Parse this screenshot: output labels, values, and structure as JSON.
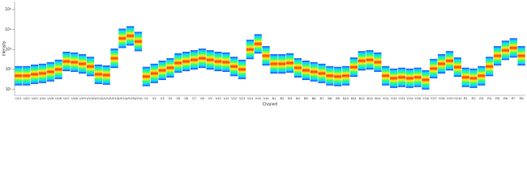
{
  "chart_data": {
    "type": "density-strip",
    "y_label": "Intensity",
    "x_label": "Channel",
    "log_scale": true,
    "colormap": [
      "#1f3cff",
      "#00d8ff",
      "#20ff70",
      "#ffee00",
      "#ff2a00"
    ],
    "categories": [
      "UV1",
      "UV2",
      "UV3",
      "UV4",
      "UV5",
      "UV6",
      "UV7",
      "UV8",
      "UV9",
      "UV10",
      "UV11",
      "UV12",
      "UV13",
      "UV14",
      "UV15",
      "UV16",
      "V1",
      "V2",
      "V3",
      "V4",
      "V5",
      "V6",
      "V7",
      "V8",
      "V9",
      "V10",
      "V11",
      "V12",
      "V13",
      "V14",
      "V15",
      "V16",
      "B1",
      "B2",
      "B3",
      "B4",
      "B5",
      "B6",
      "B7",
      "B8",
      "B9",
      "B10",
      "B11",
      "B12",
      "B13",
      "B14",
      "YG1",
      "YG2",
      "YG3",
      "YG4",
      "YG5",
      "YG6",
      "YG7",
      "YG8",
      "YG9",
      "YG10",
      "R1",
      "R2",
      "R3",
      "R4",
      "R5",
      "R6",
      "R7",
      "R8"
    ],
    "values": [
      48,
      48,
      57,
      63,
      76,
      100,
      250,
      230,
      190,
      140,
      57,
      52,
      360,
      3600,
      4800,
      2500,
      44,
      63,
      90,
      120,
      210,
      250,
      300,
      360,
      300,
      250,
      230,
      140,
      100,
      1000,
      1900,
      480,
      190,
      190,
      210,
      120,
      90,
      76,
      63,
      48,
      44,
      48,
      130,
      270,
      300,
      230,
      48,
      36,
      40,
      36,
      40,
      30,
      110,
      190,
      270,
      130,
      40,
      36,
      48,
      140,
      480,
      900,
      1200,
      480
    ],
    "ylim": [
      5,
      250000
    ],
    "yticks": [
      {
        "value": 10,
        "label": "10¹"
      },
      {
        "value": 100,
        "label": "10²"
      },
      {
        "value": 1000,
        "label": "10³"
      },
      {
        "value": 10000,
        "label": "10⁴"
      },
      {
        "value": 100000,
        "label": "10⁵"
      }
    ]
  }
}
